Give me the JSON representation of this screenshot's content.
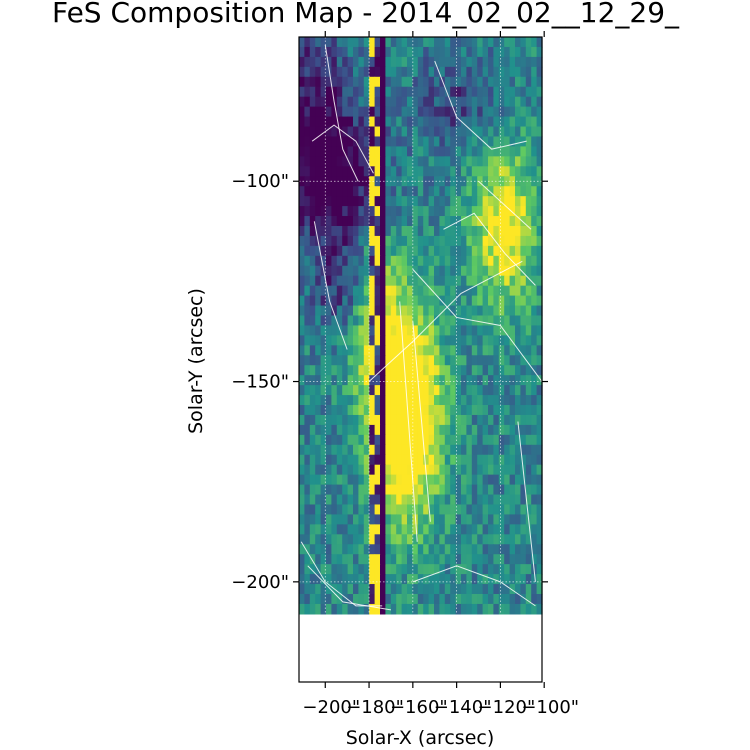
{
  "chart_data": {
    "type": "heatmap",
    "title": "FeS Composition Map - 2014_02_02__12_29_",
    "xlabel": "Solar-X (arcsec)",
    "ylabel": "Solar-Y (arcsec)",
    "xlim": [
      -212,
      -101
    ],
    "ylim": [
      -225,
      -64
    ],
    "xticks": [
      -200,
      -180,
      -160,
      -140,
      -120,
      -100
    ],
    "xtick_labels": [
      "−200\"",
      "−180\"",
      "−160\"",
      "−140\"",
      "−120\"",
      "−100\""
    ],
    "yticks": [
      -100,
      -150,
      -200
    ],
    "ytick_labels": [
      "−100\"",
      "−150\"",
      "−200\""
    ],
    "colormap": "viridis",
    "grid": true,
    "data_extent": {
      "x": [
        -212,
        -101
      ],
      "y": [
        -208,
        -64
      ]
    },
    "dark_column_x": -174,
    "noisy_column_x": -177,
    "cmap_colors": [
      "#440154",
      "#3b528b",
      "#21918c",
      "#5ec962",
      "#fde725"
    ]
  }
}
